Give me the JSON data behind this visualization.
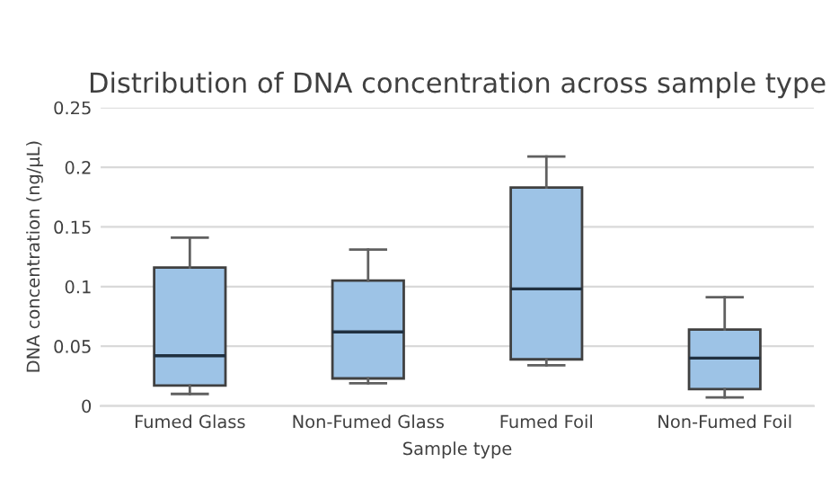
{
  "chart_data": {
    "type": "box",
    "title": "Distribution of DNA concentration across sample type",
    "xlabel": "Sample type",
    "ylabel": "DNA concentration (ng/µL)",
    "categories": [
      "Fumed Glass",
      "Non-Fumed Glass",
      "Fumed Foil",
      "Non-Fumed Foil"
    ],
    "boxes": [
      {
        "low": 0.01,
        "q1": 0.017,
        "median": 0.042,
        "q3": 0.116,
        "high": 0.141
      },
      {
        "low": 0.019,
        "q1": 0.023,
        "median": 0.062,
        "q3": 0.105,
        "high": 0.131
      },
      {
        "low": 0.034,
        "q1": 0.039,
        "median": 0.098,
        "q3": 0.183,
        "high": 0.209
      },
      {
        "low": 0.007,
        "q1": 0.014,
        "median": 0.04,
        "q3": 0.064,
        "high": 0.091
      }
    ],
    "color": "#9dc3e6",
    "ylim": [
      0,
      0.25
    ],
    "yticks": [
      0,
      0.05,
      0.1,
      0.15,
      0.2,
      0.25
    ],
    "grid": "y"
  }
}
